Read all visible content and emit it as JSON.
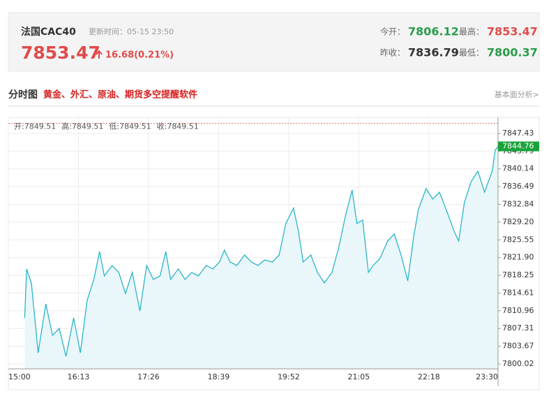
{
  "header": {
    "name": "法国CAC40",
    "update": "更新时间：05-15 23:50",
    "price": "7853.47",
    "change": "16.68(0.21%)",
    "stats": [
      {
        "label": "今开：",
        "value": "7806.12",
        "color": "#2a9d4b"
      },
      {
        "label": "最高：",
        "value": "7853.47",
        "color": "#e04b4b"
      },
      {
        "label": "昨收：",
        "value": "7836.79",
        "color": "#333333"
      },
      {
        "label": "最低：",
        "value": "7800.37",
        "color": "#2a9d4b"
      }
    ]
  },
  "section": {
    "title": "分时图",
    "promo": "黄金、外汇、原油、期货多空提醒软件",
    "link": "基本面分析>"
  },
  "chart_data": {
    "type": "line",
    "color": "#2bb5c8",
    "fill_color": "#e9f7fa",
    "ohlc_text": [
      "开:7849.51",
      "高:7849.51",
      "低:7849.51",
      "收:7849.51"
    ],
    "ref_line": 7849.51,
    "ref_color": "#e57373",
    "last_value": 7844.76,
    "last_color": "#1aa33a",
    "grid": true,
    "xlim": [
      "15:00",
      "23:30"
    ],
    "xticks": [
      "15:00",
      "16:13",
      "17:26",
      "18:39",
      "19:52",
      "21:05",
      "22:18",
      "23:30"
    ],
    "ylim": [
      7799.01,
      7850.73
    ],
    "yticks": [
      7847.43,
      7843.79,
      7840.14,
      7836.49,
      7832.84,
      {
        "value": 7829.2,
        "label": "7829.20"
      },
      7825.55,
      {
        "value": 7821.9,
        "label": "7821.90"
      },
      7818.25,
      7814.61,
      7810.96,
      7807.31,
      7803.67,
      7800.02
    ],
    "x": [
      "15:17",
      "15:19",
      "15:24",
      "15:31",
      "15:39",
      "15:46",
      "15:53",
      "16:00",
      "16:08",
      "16:15",
      "16:22",
      "16:29",
      "16:35",
      "16:40",
      "16:48",
      "16:55",
      "17:02",
      "17:09",
      "17:17",
      "17:24",
      "17:31",
      "17:38",
      "17:44",
      "17:49",
      "17:57",
      "18:04",
      "18:11",
      "18:18",
      "18:26",
      "18:33",
      "18:40",
      "18:45",
      "18:51",
      "18:58",
      "19:06",
      "19:13",
      "19:20",
      "19:27",
      "19:35",
      "19:42",
      "19:49",
      "19:57",
      "20:02",
      "20:07",
      "20:15",
      "20:22",
      "20:29",
      "20:37",
      "20:44",
      "20:51",
      "20:58",
      "21:03",
      "21:09",
      "21:15",
      "21:20",
      "21:27",
      "21:35",
      "21:42",
      "21:49",
      "21:56",
      "22:02",
      "22:07",
      "22:15",
      "22:22",
      "22:29",
      "22:36",
      "22:44",
      "22:49",
      "22:55",
      "23:02",
      "23:09",
      "23:16",
      "23:24",
      "23:27",
      "23:30"
    ],
    "values": [
      7809.5,
      7819.56,
      7816.68,
      7802.32,
      7812.37,
      7805.91,
      7807.34,
      7801.6,
      7809.5,
      7802.32,
      7813.09,
      7817.4,
      7823.15,
      7818.12,
      7820.27,
      7818.84,
      7814.53,
      7818.84,
      7810.94,
      7820.27,
      7817.4,
      7818.12,
      7823.15,
      7817.4,
      7819.56,
      7817.4,
      7818.84,
      7818.12,
      7820.27,
      7819.56,
      7820.99,
      7823.44,
      7820.99,
      7820.27,
      7822.43,
      7820.99,
      7820.27,
      7821.42,
      7820.99,
      7822.43,
      7828.9,
      7832.06,
      7827.46,
      7820.99,
      7822.43,
      7818.84,
      7816.68,
      7818.84,
      7823.87,
      7830.33,
      7835.79,
      7828.9,
      7829.61,
      7818.84,
      7820.27,
      7821.71,
      7825.3,
      7826.74,
      7822.43,
      7817.11,
      7826.02,
      7831.77,
      7836.08,
      7833.92,
      7835.36,
      7831.77,
      7827.46,
      7825.3,
      7833.21,
      7837.52,
      7839.67,
      7835.36,
      7839.67,
      7843.98,
      7844.76
    ]
  }
}
